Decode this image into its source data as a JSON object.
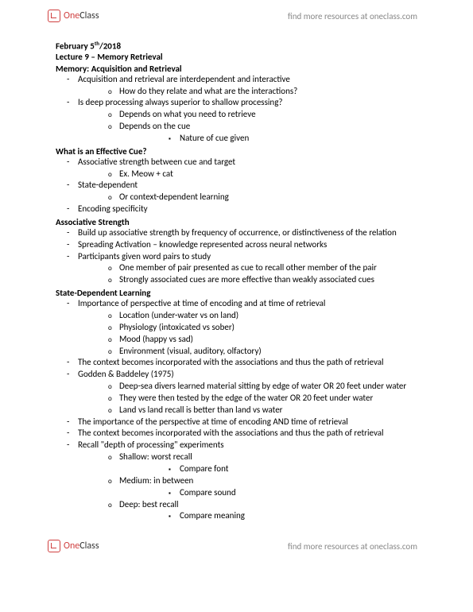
{
  "brand": {
    "part1": "One",
    "part2": "Class"
  },
  "resources_link": "find more resources at oneclass.com",
  "date_prefix": "February 5",
  "date_sup": "th",
  "date_suffix": "/2018",
  "lecture_title": "Lecture 9 – Memory Retrieval",
  "sections": {
    "s1": {
      "title": "Memory: Acquisition and Retrieval",
      "l1_1": "Acquisition and retrieval are interdependent and interactive",
      "l2_1": "How do they relate and what are the interactions?",
      "l1_2": "Is deep processing always superior to shallow processing?",
      "l2_2": "Depends on what you need to retrieve",
      "l2_3": "Depends on the cue",
      "l3_1": "Nature of cue given"
    },
    "s2": {
      "title": "What is an Effective Cue?",
      "l1_1": "Associative strength between cue and target",
      "l2_1": "Ex. Meow + cat",
      "l1_2": "State-dependent",
      "l2_2": "Or context-dependent learning",
      "l1_3": "Encoding specificity"
    },
    "s3": {
      "title": "Associative Strength",
      "l1_1": "Build up associative strength by frequency of occurrence, or distinctiveness of the relation",
      "l1_2": "Spreading Activation – knowledge represented across neural networks",
      "l1_3": "Participants given word pairs to study",
      "l2_1": "One member of pair presented as cue to recall other member of the pair",
      "l2_2": "Strongly associated cues are more effective than weakly associated cues"
    },
    "s4": {
      "title": "State-Dependent Learning",
      "l1_1": "Importance of perspective at time of encoding and at time of retrieval",
      "l2_1": "Location (under-water vs on land)",
      "l2_2": "Physiology (intoxicated vs sober)",
      "l2_3": "Mood (happy vs sad)",
      "l2_4": "Environment (visual, auditory, olfactory)",
      "l1_2": "The context becomes incorporated with the associations and thus the path of retrieval",
      "l1_3": "Godden & Baddeley (1975)",
      "l2_5": "Deep-sea divers learned material sitting by edge of water OR 20 feet under water",
      "l2_6": "They were then tested by the edge of the water OR 20 feet under water",
      "l2_7": "Land vs land recall is better than land vs water",
      "l1_4": "The importance of the perspective at time of encoding AND time of retrieval",
      "l1_5": "The context becomes incorporated with the associations and thus the path of retrieval",
      "l1_6": "Recall \"depth of processing\" experiments",
      "l2_8": "Shallow: worst recall",
      "l3_1": "Compare font",
      "l2_9": "Medium: in between",
      "l3_2": "Compare sound",
      "l2_10": "Deep: best recall",
      "l3_3": "Compare meaning"
    }
  }
}
